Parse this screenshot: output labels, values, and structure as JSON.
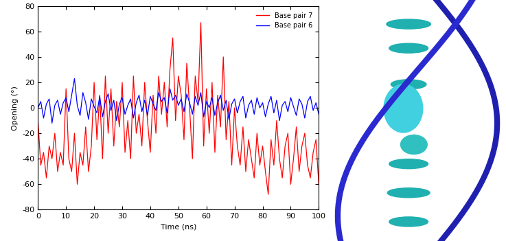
{
  "chart_data": {
    "type": "line",
    "x_label": "Time (ns)",
    "y_label": "Opening (°)",
    "x": [
      0,
      1,
      2,
      3,
      4,
      5,
      6,
      7,
      8,
      9,
      10,
      11,
      12,
      13,
      14,
      15,
      16,
      17,
      18,
      19,
      20,
      21,
      22,
      23,
      24,
      25,
      26,
      27,
      28,
      29,
      30,
      31,
      32,
      33,
      34,
      35,
      36,
      37,
      38,
      39,
      40,
      41,
      42,
      43,
      44,
      45,
      46,
      47,
      48,
      49,
      50,
      51,
      52,
      53,
      54,
      55,
      56,
      57,
      58,
      59,
      60,
      61,
      62,
      63,
      64,
      65,
      66,
      67,
      68,
      69,
      70,
      71,
      72,
      73,
      74,
      75,
      76,
      77,
      78,
      79,
      80,
      81,
      82,
      83,
      84,
      85,
      86,
      87,
      88,
      89,
      90,
      91,
      92,
      93,
      94,
      95,
      96,
      97,
      98,
      99,
      100
    ],
    "series": [
      {
        "name": "Base pair 7",
        "color": "#ff0000",
        "values": [
          -10,
          -45,
          -35,
          -55,
          -30,
          -40,
          -20,
          -50,
          -35,
          -45,
          15,
          -40,
          -50,
          -20,
          -60,
          -35,
          -45,
          -15,
          -50,
          -30,
          20,
          -25,
          10,
          -40,
          25,
          -20,
          15,
          -30,
          5,
          -15,
          20,
          -35,
          -10,
          -40,
          25,
          -20,
          -5,
          -30,
          20,
          -10,
          -35,
          10,
          -20,
          25,
          -5,
          20,
          -15,
          30,
          55,
          -10,
          25,
          10,
          -25,
          35,
          0,
          -40,
          25,
          5,
          67,
          -30,
          15,
          -20,
          20,
          -35,
          10,
          -15,
          40,
          -25,
          5,
          -45,
          0,
          -30,
          -45,
          -15,
          -50,
          -25,
          -40,
          -55,
          -20,
          -45,
          -30,
          -50,
          -68,
          -25,
          -45,
          -10,
          -40,
          -55,
          -30,
          -20,
          -60,
          -40,
          -15,
          -50,
          -30,
          -20,
          -45,
          -55,
          -35,
          -25,
          -60
        ]
      },
      {
        "name": "Base pair 6",
        "color": "#0000ff",
        "values": [
          0,
          5,
          -8,
          3,
          7,
          -12,
          2,
          6,
          -5,
          4,
          8,
          -3,
          10,
          23,
          2,
          -6,
          12,
          4,
          -9,
          7,
          1,
          -4,
          9,
          -7,
          5,
          11,
          -2,
          6,
          -10,
          3,
          8,
          -5,
          2,
          7,
          -8,
          4,
          10,
          -3,
          6,
          -6,
          9,
          3,
          -2,
          12,
          5,
          8,
          -4,
          15,
          6,
          10,
          2,
          7,
          -3,
          11,
          4,
          -5,
          9,
          2,
          12,
          -7,
          5,
          0,
          8,
          -6,
          4,
          10,
          -2,
          6,
          -9,
          3,
          7,
          -4,
          5,
          9,
          -8,
          2,
          6,
          -5,
          8,
          0,
          4,
          -7,
          3,
          9,
          -4,
          6,
          -10,
          2,
          5,
          -3,
          8,
          1,
          -6,
          7,
          3,
          -8,
          5,
          9,
          -2,
          4,
          -5
        ]
      }
    ],
    "xlim": [
      0,
      100
    ],
    "xticks": [
      0,
      10,
      20,
      30,
      40,
      50,
      60,
      70,
      80,
      90,
      100
    ],
    "ylim": [
      -80,
      80
    ],
    "yticks": [
      -80,
      -60,
      -40,
      -20,
      0,
      20,
      40,
      60,
      80
    ],
    "legend": "upper right"
  }
}
